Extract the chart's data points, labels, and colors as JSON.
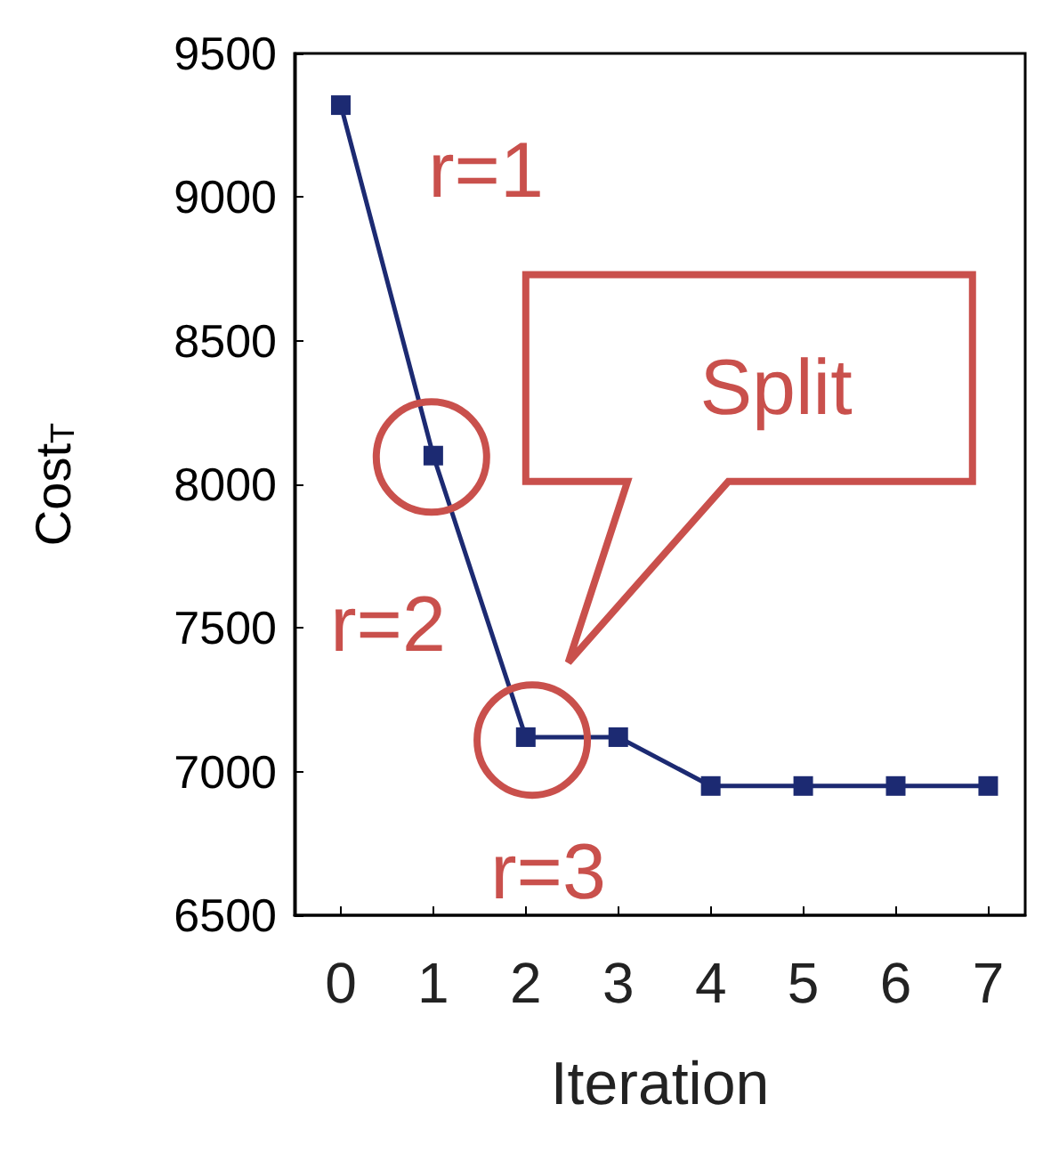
{
  "chart_data": {
    "type": "line",
    "xlabel": "Iteration",
    "ylabel": "Cost$_{T}$",
    "x": [
      0,
      1,
      2,
      3,
      4,
      5,
      6,
      7
    ],
    "series": [
      {
        "color": "#1c2a72",
        "values": [
          9320,
          8100,
          7120,
          7120,
          6950,
          6950,
          6950,
          6950
        ]
      }
    ],
    "xlim": [
      -0.5,
      7.4
    ],
    "xticks": [
      0,
      1,
      2,
      3,
      4,
      5,
      6,
      7
    ],
    "ylim": [
      6500,
      9500
    ],
    "yticks": [
      6500,
      7000,
      7500,
      8000,
      8500,
      9000,
      9500
    ],
    "marker": "square",
    "line_style": "solid",
    "grid": false,
    "annotations": [
      "r=1",
      "r=2",
      "r=3",
      "Split"
    ]
  }
}
